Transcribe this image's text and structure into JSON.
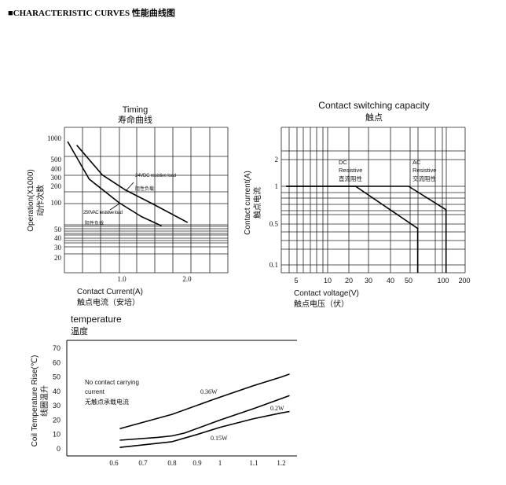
{
  "heading": "■CHARACTERISTIC CURVES 性能曲线图",
  "chart_data": [
    {
      "type": "line",
      "title": "Timing",
      "subtitle": "寿命曲线",
      "xlabel": "Contact Current(A)",
      "xlabel_cn": "触点电流（安培）",
      "ylabel": "Operation(X1000)",
      "ylabel_cn": "动作次数",
      "x_ticks": [
        "1.0",
        "2.0"
      ],
      "y_ticks": [
        "1000",
        "500",
        "400",
        "300",
        "200",
        "100",
        "50",
        "40",
        "30",
        "20"
      ],
      "yscale": "log",
      "grid": true,
      "series": [
        {
          "name": "250VAC resistive load",
          "name_cn": "阻性负载",
          "x": [
            0.17,
            0.5,
            0.96,
            1.3,
            1.61
          ],
          "y": [
            900,
            280,
            100,
            70,
            55
          ]
        },
        {
          "name": "24VDC resistive load",
          "name_cn": "阻性负载",
          "x": [
            0.31,
            0.7,
            1.06,
            1.5,
            2.01
          ],
          "y": [
            800,
            330,
            170,
            95,
            60
          ]
        }
      ]
    },
    {
      "type": "line",
      "title": "Contact switching capacity",
      "subtitle": "触点",
      "xlabel": "Contact voltage(V)",
      "xlabel_cn": "触点电压（伏）",
      "ylabel": "Contact current(A)",
      "ylabel_cn": "触点电流",
      "x_ticks": [
        "5",
        "10",
        "20",
        "30",
        "40",
        "50",
        "100",
        "200"
      ],
      "y_ticks": [
        "2",
        "1",
        "0.5",
        "0.1"
      ],
      "xscale": "log",
      "yscale": "log",
      "grid": true,
      "series": [
        {
          "name": "DC",
          "label_lines": [
            "DC",
            "Resistive",
            "直流阻性"
          ],
          "x": [
            4,
            23,
            60,
            60
          ],
          "y": [
            1,
            1,
            0.42,
            0.07
          ]
        },
        {
          "name": "AC",
          "label_lines": [
            "AC",
            "Resistive",
            "交流阻性"
          ],
          "x": [
            4,
            50,
            110,
            110
          ],
          "y": [
            1,
            1,
            0.65,
            0.07
          ]
        }
      ]
    },
    {
      "type": "line",
      "title": "temperature",
      "subtitle": "温度",
      "ylabel": "Coil Temperature Rise(℃)",
      "ylabel_cn": "线圈温升",
      "x_ticks": [
        "0.6",
        "0.7",
        "0.8",
        "0.9",
        "1",
        "1.1",
        "1.2"
      ],
      "y_ticks": [
        "70",
        "60",
        "50",
        "40",
        "30",
        "20",
        "10",
        "0"
      ],
      "ylim": [
        0,
        70
      ],
      "grid": false,
      "annotation": [
        "No contact carrying",
        "current",
        "无触点承载电流"
      ],
      "series": [
        {
          "name": "0.36W",
          "x": [
            0.62,
            0.8,
            1.0,
            1.1,
            1.2,
            1.23
          ],
          "y": [
            14,
            24,
            36,
            44,
            50,
            52
          ]
        },
        {
          "name": "0.2W",
          "x": [
            0.62,
            0.75,
            0.8,
            0.85,
            1.0,
            1.1,
            1.23
          ],
          "y": [
            6,
            8,
            9,
            11,
            20,
            28,
            37
          ]
        },
        {
          "name": "0.15W",
          "x": [
            0.62,
            0.8,
            0.9,
            1.0,
            1.1,
            1.2,
            1.23
          ],
          "y": [
            1,
            5,
            10,
            15,
            21,
            25,
            26
          ]
        }
      ]
    }
  ]
}
